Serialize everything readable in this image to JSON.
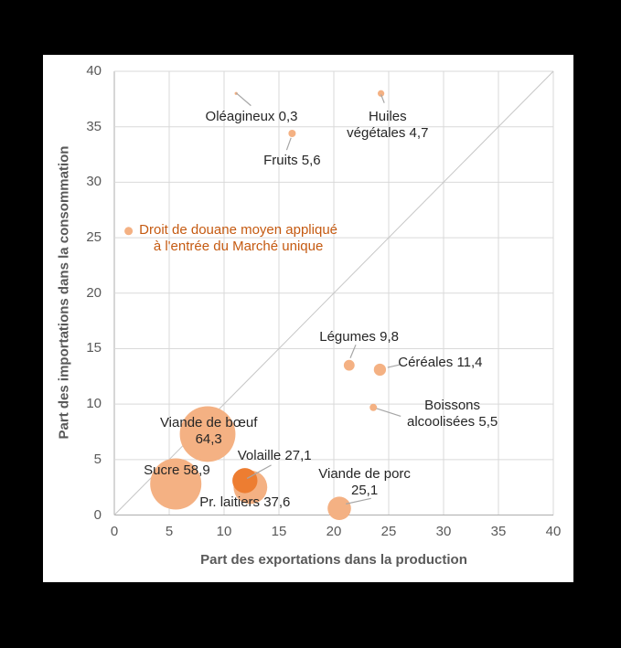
{
  "page": {
    "background": "#000000",
    "canvas_background": "#ffffff"
  },
  "chart_data": {
    "type": "scatter",
    "subtype": "bubble",
    "xlabel": "Part des exportations dans la production",
    "ylabel": "Part des importations dans la consommation",
    "xlim": [
      0,
      40
    ],
    "ylim": [
      0,
      40
    ],
    "x_ticks": [
      0,
      5,
      10,
      15,
      20,
      25,
      30,
      35,
      40
    ],
    "y_ticks": [
      0,
      5,
      10,
      15,
      20,
      25,
      30,
      35,
      40
    ],
    "grid": true,
    "diagonal_line": [
      [
        0,
        0
      ],
      [
        40,
        40
      ]
    ],
    "colors": {
      "bubble": "#f4b183",
      "bubble_highlight": "#ed7d31",
      "gridline": "#d9d9d9",
      "axis_line": "#adadad",
      "diagonal": "#c6c6c6",
      "leader": "#a6a6a6",
      "label_text": "#262626",
      "tick_text": "#595959",
      "legend_text": "#c55a11"
    },
    "legend": {
      "lines": [
        "Droit de douane moyen appliqué",
        "à l'entrée du Marché unique"
      ],
      "marker_color": "#f4b183",
      "marker_xy": [
        1.3,
        25.6
      ],
      "text_center_xy": [
        11.3,
        24.9
      ]
    },
    "points": [
      {
        "name": "Oléagineux",
        "x": 11.1,
        "y": 38.0,
        "tariff": 0.3,
        "label_lines": [
          "Oléagineux 0,3"
        ],
        "label_anchor": [
          12.5,
          35.9
        ],
        "leader": [
          [
            11.1,
            38.05
          ],
          [
            12.45,
            36.9
          ]
        ]
      },
      {
        "name": "Huiles végétales",
        "x": 24.3,
        "y": 38.0,
        "tariff": 4.7,
        "label_lines": [
          "Huiles",
          "végétales 4,7"
        ],
        "label_anchor": [
          24.9,
          35.1
        ],
        "leader": [
          [
            24.3,
            37.9
          ],
          [
            24.6,
            37.15
          ]
        ]
      },
      {
        "name": "Fruits",
        "x": 16.2,
        "y": 34.4,
        "tariff": 5.6,
        "label_lines": [
          "Fruits 5,6"
        ],
        "label_anchor": [
          16.2,
          31.9
        ],
        "leader": [
          [
            16.1,
            34.0
          ],
          [
            15.7,
            32.9
          ]
        ]
      },
      {
        "name": "Légumes",
        "x": 21.4,
        "y": 13.5,
        "tariff": 9.8,
        "label_lines": [
          "Légumes 9,8"
        ],
        "label_anchor": [
          22.3,
          16.0
        ],
        "leader": [
          [
            21.5,
            14.15
          ],
          [
            22.0,
            15.35
          ]
        ]
      },
      {
        "name": "Céréales",
        "x": 24.2,
        "y": 13.1,
        "tariff": 11.4,
        "label_lines": [
          "Céréales 11,4"
        ],
        "label_anchor": [
          29.7,
          13.7
        ],
        "leader": [
          [
            24.9,
            13.3
          ],
          [
            26.0,
            13.55
          ]
        ]
      },
      {
        "name": "Boissons alcoolisées",
        "x": 23.6,
        "y": 9.7,
        "tariff": 5.5,
        "label_lines": [
          "Boissons",
          "alcoolisées 5,5"
        ],
        "label_anchor": [
          30.8,
          9.1
        ],
        "leader": [
          [
            23.9,
            9.6
          ],
          [
            26.1,
            8.9
          ]
        ]
      },
      {
        "name": "Viande de bœuf",
        "x": 8.5,
        "y": 7.3,
        "tariff": 64.3,
        "label_lines": [
          "Viande de bœuf",
          "64,3"
        ],
        "label_anchor": [
          8.6,
          7.5
        ],
        "leader": null
      },
      {
        "name": "Sucre",
        "x": 5.6,
        "y": 2.8,
        "tariff": 58.9,
        "label_lines": [
          "Sucre 58,9"
        ],
        "label_anchor": [
          5.7,
          4.0
        ],
        "leader": null
      },
      {
        "name": "Volaille",
        "x": 11.9,
        "y": 3.1,
        "tariff": 27.1,
        "label_lines": [
          "Volaille 27,1"
        ],
        "label_anchor": [
          14.6,
          5.3
        ],
        "leader": [
          [
            12.1,
            3.3
          ],
          [
            14.3,
            4.5
          ]
        ],
        "highlight": true
      },
      {
        "name": "Pr. laitiers",
        "x": 12.4,
        "y": 2.5,
        "tariff": 37.6,
        "label_lines": [
          "Pr. laitiers 37,6"
        ],
        "label_anchor": [
          11.9,
          1.1
        ],
        "leader": null
      },
      {
        "name": "Viande de porc",
        "x": 20.5,
        "y": 0.6,
        "tariff": 25.1,
        "label_lines": [
          "Viande de porc",
          "25,1"
        ],
        "label_anchor": [
          22.8,
          2.9
        ],
        "leader": [
          [
            21.1,
            1.0
          ],
          [
            23.4,
            1.5
          ]
        ]
      }
    ]
  }
}
